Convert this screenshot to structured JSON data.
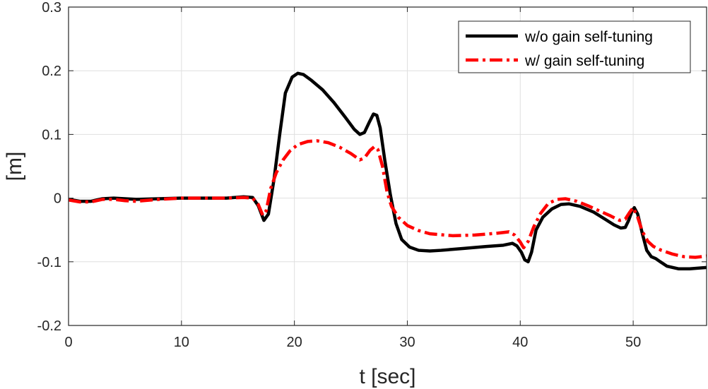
{
  "chart_data": {
    "type": "line",
    "xlabel": "t [sec]",
    "ylabel": "[m]",
    "xlim": [
      0,
      56.5
    ],
    "ylim": [
      -0.2,
      0.3
    ],
    "x_ticks": [
      0,
      10,
      20,
      30,
      40,
      50
    ],
    "y_ticks": [
      -0.2,
      -0.1,
      0,
      0.1,
      0.2,
      0.3
    ],
    "x_tick_labels": [
      "0",
      "10",
      "20",
      "30",
      "40",
      "50"
    ],
    "y_tick_labels": [
      "-0.2",
      "-0.1",
      "0",
      "0.1",
      "0.2",
      "0.3"
    ],
    "grid": true,
    "legend_position": "top-right",
    "series": [
      {
        "name": "w/o gain self-tuning",
        "color": "#000000",
        "style": "solid",
        "points": [
          [
            0,
            -0.002
          ],
          [
            1,
            -0.005
          ],
          [
            2,
            -0.005
          ],
          [
            3,
            -0.001
          ],
          [
            4,
            0.0
          ],
          [
            5,
            -0.001
          ],
          [
            6,
            -0.002
          ],
          [
            8,
            -0.001
          ],
          [
            10,
            0.0
          ],
          [
            12,
            0.0
          ],
          [
            14,
            0.0
          ],
          [
            15.5,
            0.002
          ],
          [
            16.3,
            0.001
          ],
          [
            16.8,
            -0.012
          ],
          [
            17.3,
            -0.035
          ],
          [
            17.7,
            -0.025
          ],
          [
            18.2,
            0.03
          ],
          [
            18.7,
            0.1
          ],
          [
            19.2,
            0.165
          ],
          [
            19.8,
            0.19
          ],
          [
            20.3,
            0.196
          ],
          [
            20.8,
            0.194
          ],
          [
            21.5,
            0.185
          ],
          [
            22.5,
            0.17
          ],
          [
            23.5,
            0.15
          ],
          [
            24.5,
            0.127
          ],
          [
            25.3,
            0.108
          ],
          [
            25.8,
            0.1
          ],
          [
            26.2,
            0.103
          ],
          [
            26.6,
            0.118
          ],
          [
            27.0,
            0.132
          ],
          [
            27.3,
            0.13
          ],
          [
            27.6,
            0.11
          ],
          [
            28.0,
            0.06
          ],
          [
            28.5,
            0.005
          ],
          [
            29.0,
            -0.04
          ],
          [
            29.5,
            -0.065
          ],
          [
            30.2,
            -0.077
          ],
          [
            31,
            -0.082
          ],
          [
            32,
            -0.083
          ],
          [
            33,
            -0.082
          ],
          [
            35,
            -0.079
          ],
          [
            37,
            -0.076
          ],
          [
            38.5,
            -0.074
          ],
          [
            39.3,
            -0.071
          ],
          [
            39.7,
            -0.075
          ],
          [
            40.1,
            -0.085
          ],
          [
            40.4,
            -0.097
          ],
          [
            40.7,
            -0.1
          ],
          [
            41.0,
            -0.085
          ],
          [
            41.4,
            -0.05
          ],
          [
            42.0,
            -0.03
          ],
          [
            42.8,
            -0.017
          ],
          [
            43.6,
            -0.01
          ],
          [
            44.3,
            -0.009
          ],
          [
            45.3,
            -0.013
          ],
          [
            46.5,
            -0.022
          ],
          [
            47.5,
            -0.033
          ],
          [
            48.3,
            -0.042
          ],
          [
            48.9,
            -0.047
          ],
          [
            49.3,
            -0.046
          ],
          [
            49.6,
            -0.035
          ],
          [
            49.9,
            -0.02
          ],
          [
            50.1,
            -0.015
          ],
          [
            50.4,
            -0.025
          ],
          [
            50.8,
            -0.055
          ],
          [
            51.2,
            -0.082
          ],
          [
            51.6,
            -0.092
          ],
          [
            52.0,
            -0.095
          ],
          [
            52.4,
            -0.1
          ],
          [
            53,
            -0.107
          ],
          [
            54,
            -0.111
          ],
          [
            55,
            -0.111
          ],
          [
            56.5,
            -0.109
          ]
        ]
      },
      {
        "name": "w/ gain self-tuning",
        "color": "#ff0000",
        "style": "dashdot",
        "points": [
          [
            0,
            -0.003
          ],
          [
            1,
            -0.006
          ],
          [
            2,
            -0.006
          ],
          [
            3,
            -0.002
          ],
          [
            4,
            -0.002
          ],
          [
            5,
            -0.004
          ],
          [
            6,
            -0.005
          ],
          [
            8,
            -0.002
          ],
          [
            10,
            0.0
          ],
          [
            12,
            0.0
          ],
          [
            14,
            0.0
          ],
          [
            15.5,
            0.001
          ],
          [
            16.3,
            0.0
          ],
          [
            16.8,
            -0.01
          ],
          [
            17.2,
            -0.027
          ],
          [
            17.5,
            -0.02
          ],
          [
            17.9,
            0.015
          ],
          [
            18.4,
            0.04
          ],
          [
            19.0,
            0.06
          ],
          [
            19.6,
            0.074
          ],
          [
            20.3,
            0.084
          ],
          [
            21.2,
            0.089
          ],
          [
            22,
            0.09
          ],
          [
            23,
            0.087
          ],
          [
            24,
            0.08
          ],
          [
            25,
            0.07
          ],
          [
            25.8,
            0.06
          ],
          [
            26.2,
            0.063
          ],
          [
            26.7,
            0.075
          ],
          [
            27.1,
            0.081
          ],
          [
            27.4,
            0.076
          ],
          [
            27.8,
            0.05
          ],
          [
            28.2,
            0.01
          ],
          [
            28.6,
            -0.013
          ],
          [
            29.2,
            -0.03
          ],
          [
            30,
            -0.043
          ],
          [
            31,
            -0.051
          ],
          [
            32,
            -0.056
          ],
          [
            34,
            -0.059
          ],
          [
            36,
            -0.058
          ],
          [
            38,
            -0.055
          ],
          [
            39.0,
            -0.053
          ],
          [
            39.5,
            -0.058
          ],
          [
            40.0,
            -0.069
          ],
          [
            40.3,
            -0.078
          ],
          [
            40.7,
            -0.068
          ],
          [
            41.2,
            -0.045
          ],
          [
            41.8,
            -0.024
          ],
          [
            42.5,
            -0.008
          ],
          [
            43.3,
            -0.002
          ],
          [
            44,
            -0.001
          ],
          [
            45,
            -0.005
          ],
          [
            46,
            -0.012
          ],
          [
            47,
            -0.02
          ],
          [
            48,
            -0.028
          ],
          [
            48.8,
            -0.035
          ],
          [
            49.3,
            -0.033
          ],
          [
            49.7,
            -0.022
          ],
          [
            50.0,
            -0.015
          ],
          [
            50.4,
            -0.03
          ],
          [
            50.8,
            -0.052
          ],
          [
            51.3,
            -0.068
          ],
          [
            51.8,
            -0.076
          ],
          [
            52.5,
            -0.082
          ],
          [
            53.5,
            -0.088
          ],
          [
            54.5,
            -0.092
          ],
          [
            55.5,
            -0.093
          ],
          [
            56.5,
            -0.091
          ]
        ]
      }
    ]
  }
}
